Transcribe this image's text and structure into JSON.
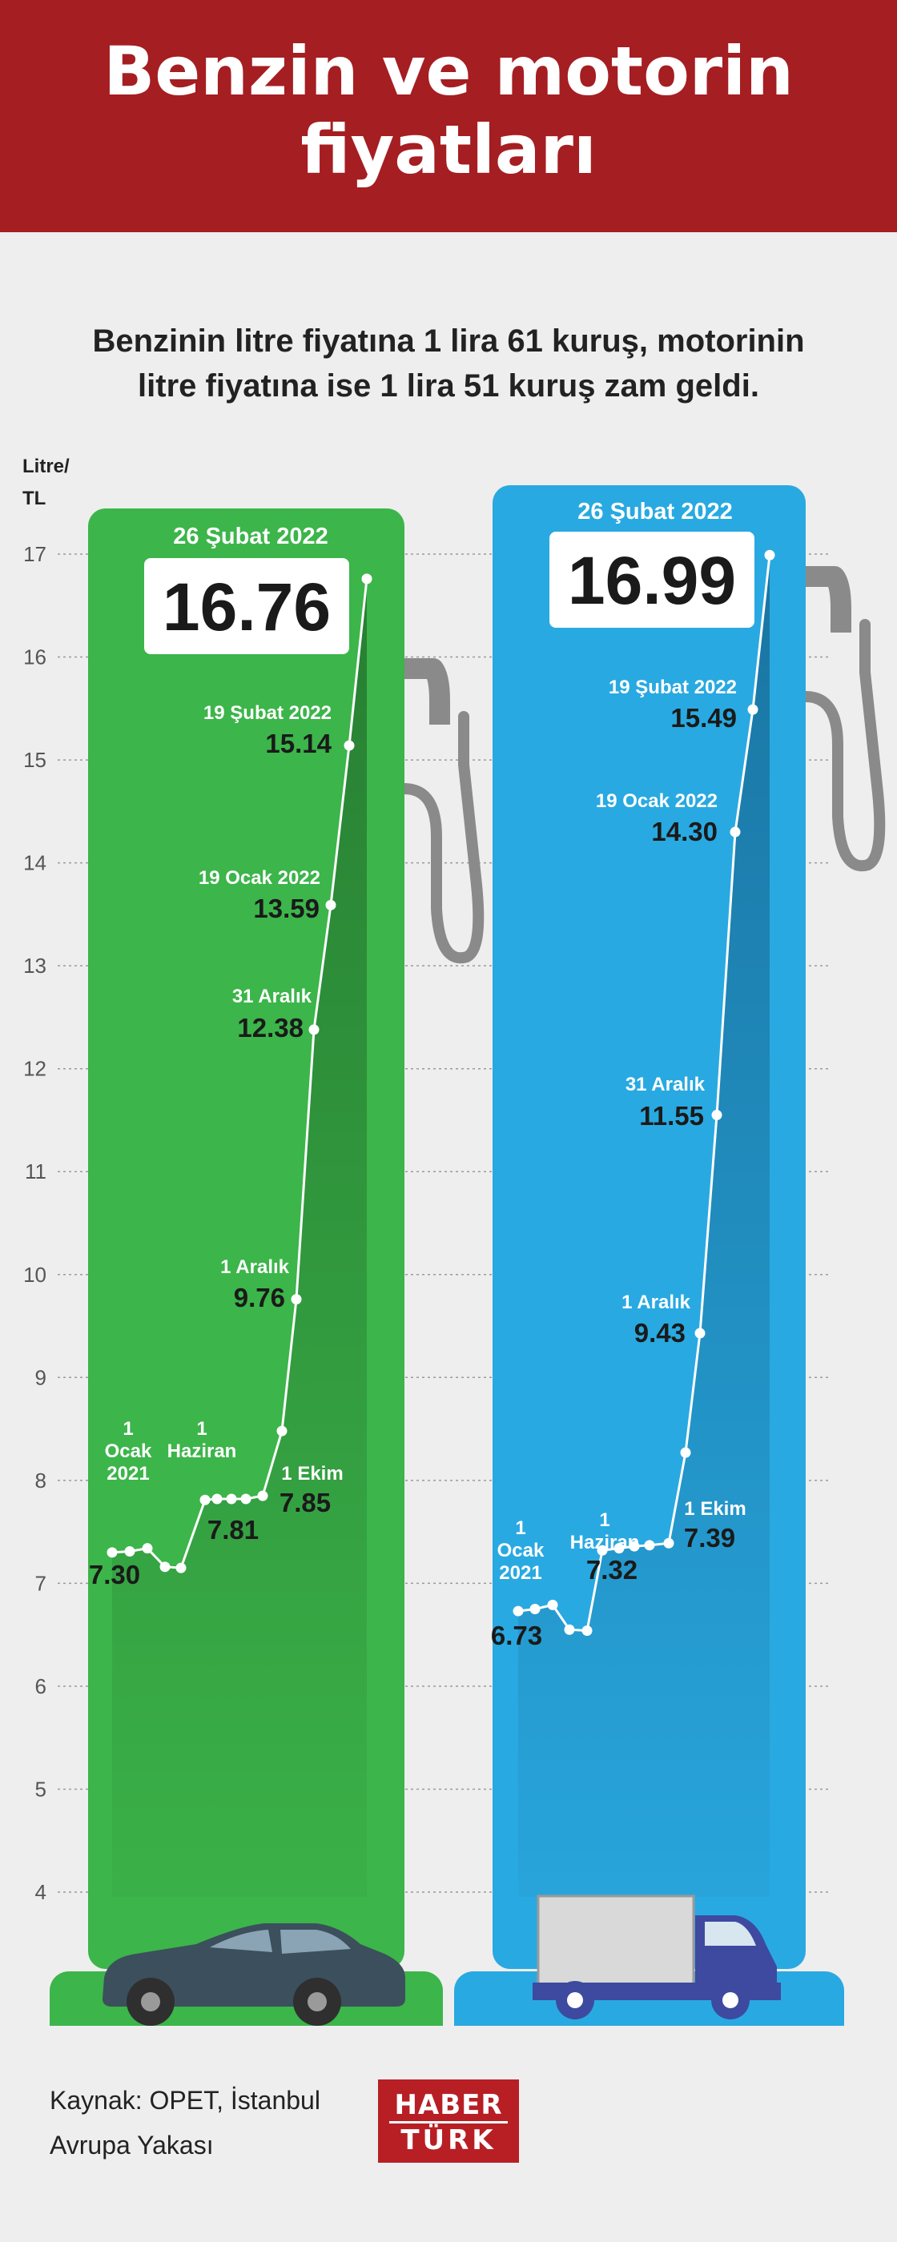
{
  "header": {
    "title": "Benzin ve motorin\nfiyatları"
  },
  "subtitle": "Benzinin litre fiyatına 1 lira 61 kuruş, motorinin\nlitre fiyatına ise 1 lira 51 kuruş zam geldi.",
  "y_unit": "Litre/\nTL",
  "footer": {
    "source": "Kaynak: OPET, İstanbul\nAvrupa Yakası",
    "logo_top": "HABER",
    "logo_bottom": "TÜRK"
  },
  "colors": {
    "header": "#a51e22",
    "benzin": "#3cb54a",
    "motorin": "#29a9e1",
    "pump_hose": "#8a8a8a",
    "text": "#222222"
  },
  "icons": {
    "benzin_vehicle": "car-icon",
    "motorin_vehicle": "truck-icon",
    "pump": "fuel-nozzle-icon"
  },
  "chart_data": {
    "type": "line",
    "ylabel": "Litre/ TL",
    "ylim": [
      4,
      17
    ],
    "yticks": [
      4,
      5,
      6,
      7,
      8,
      9,
      10,
      11,
      12,
      13,
      14,
      15,
      16,
      17
    ],
    "grid": true,
    "series": [
      {
        "name": "Benzin",
        "top_label": "26 Şubat 2022",
        "latest_value": "16.76",
        "values": [
          7.3,
          7.31,
          7.34,
          7.16,
          7.15,
          7.81,
          7.82,
          7.82,
          7.82,
          7.85,
          8.48,
          9.76,
          12.38,
          13.59,
          15.14,
          16.76
        ],
        "annotations": [
          {
            "index": 0,
            "label": "1\nOcak\n2021",
            "value": "7.30"
          },
          {
            "index": 5,
            "label": "1\nHaziran",
            "value": "7.81"
          },
          {
            "index": 9,
            "label": "1 Ekim",
            "value": "7.85"
          },
          {
            "index": 11,
            "label": "1 Aralık",
            "value": "9.76"
          },
          {
            "index": 12,
            "label": "31 Aralık",
            "value": "12.38"
          },
          {
            "index": 13,
            "label": "19 Ocak 2022",
            "value": "13.59"
          },
          {
            "index": 14,
            "label": "19 Şubat 2022",
            "value": "15.14"
          }
        ]
      },
      {
        "name": "Motorin",
        "top_label": "26 Şubat 2022",
        "latest_value": "16.99",
        "values": [
          6.73,
          6.75,
          6.79,
          6.55,
          6.54,
          7.32,
          7.34,
          7.36,
          7.37,
          7.39,
          8.27,
          9.43,
          11.55,
          14.3,
          15.49,
          16.99
        ],
        "annotations": [
          {
            "index": 0,
            "label": "1\nOcak\n2021",
            "value": "6.73"
          },
          {
            "index": 5,
            "label": "1\nHaziran",
            "value": "7.32"
          },
          {
            "index": 9,
            "label": "1 Ekim",
            "value": "7.39"
          },
          {
            "index": 11,
            "label": "1 Aralık",
            "value": "9.43"
          },
          {
            "index": 12,
            "label": "31 Aralık",
            "value": "11.55"
          },
          {
            "index": 13,
            "label": "19 Ocak 2022",
            "value": "14.30"
          },
          {
            "index": 14,
            "label": "19 Şubat 2022",
            "value": "15.49"
          }
        ]
      }
    ]
  }
}
